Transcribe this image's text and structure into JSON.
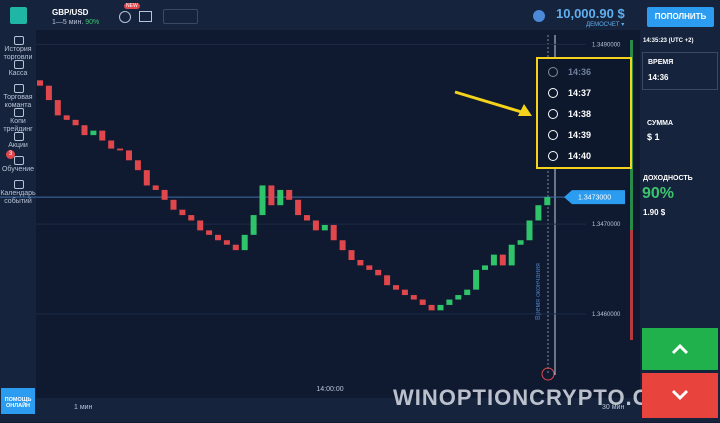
{
  "header": {
    "pair": "GBP/USD",
    "duration": "1—5 мин.",
    "payout": "90%",
    "badge": "NEW",
    "balance": "10,000.90 $",
    "account": "ДЕМОСЧЕТ ▾",
    "deposit": "ПОПОЛНИТЬ"
  },
  "sidebar": {
    "items": [
      "История торговли",
      "Касса",
      "Торговая команта",
      "Копи трейдинг",
      "Акции",
      "Обучение",
      "Календарь событий"
    ],
    "badge": "3",
    "help": "ПОМОЩЬ ОНЛАЙН"
  },
  "chart": {
    "type": "candlestick",
    "open": 1.3486,
    "closes": [
      1.34854,
      1.34838,
      1.34821,
      1.34816,
      1.3481,
      1.34799,
      1.34804,
      1.34793,
      1.34784,
      1.34782,
      1.34771,
      1.3476,
      1.34743,
      1.34738,
      1.34727,
      1.34716,
      1.3471,
      1.34704,
      1.34693,
      1.34688,
      1.34682,
      1.34677,
      1.34671,
      1.34688,
      1.3471,
      1.34743,
      1.34721,
      1.34738,
      1.34727,
      1.3471,
      1.34704,
      1.34693,
      1.34699,
      1.34682,
      1.34671,
      1.3466,
      1.34654,
      1.34649,
      1.34643,
      1.34632,
      1.34627,
      1.34621,
      1.34616,
      1.3461,
      1.34604,
      1.3461,
      1.34616,
      1.34621,
      1.34627,
      1.34649,
      1.34654,
      1.34666,
      1.34654,
      1.34677,
      1.34682,
      1.34704,
      1.34721,
      1.3473
    ],
    "ylim": [
      1.34522,
      1.34916
    ],
    "yticks": [
      {
        "value": 1.349,
        "label": "1.3490000"
      },
      {
        "value": 1.347,
        "label": "1.3470000"
      },
      {
        "value": 1.346,
        "label": "1.3460000"
      }
    ],
    "current": {
      "value": 1.3473,
      "label": "1.3473000"
    },
    "xlabel": "14:00:00",
    "timeframe": "1 мин",
    "zoom": "30 мин",
    "expiry_label": "Время окончания"
  },
  "dropdown": {
    "options": [
      "14:36",
      "14:37",
      "14:38",
      "14:39",
      "14:40"
    ]
  },
  "panel": {
    "clock": "14:35:23 (UTC +2)",
    "time_label": "ВРЕМЯ",
    "time": "14:36",
    "amount_label": "СУММА",
    "amount": "$ 1",
    "yield_label": "ДОХОДНОСТЬ",
    "yield": "90%",
    "profit": "1.90 $"
  },
  "watermark": "WINOPTIONCRYPTO.COM"
}
